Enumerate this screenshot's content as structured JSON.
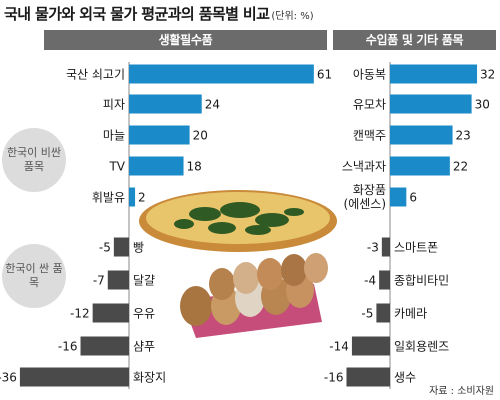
{
  "title": "국내 물가와 외국 물가 평균과의 품목별 비교",
  "unit_label": "(단위: %)",
  "group_high": "한국이 비싼 품목",
  "group_low": "한국이 싼 품목",
  "source": "자료 : 소비자원",
  "colors": {
    "positive": "#1a8ac8",
    "negative": "#4a4a4a",
    "header": "#6b6b6b",
    "group_circle": "#dcdcdc"
  },
  "chart_data": [
    {
      "type": "bar",
      "title": "생활필수품",
      "categories": [
        "국산 쇠고기",
        "피자",
        "마늘",
        "TV",
        "휘발유",
        "빵",
        "달걀",
        "우유",
        "샴푸",
        "화장지"
      ],
      "values": [
        61,
        24,
        20,
        18,
        2,
        -5,
        -7,
        -12,
        -16,
        -36
      ],
      "grid": false
    },
    {
      "type": "bar",
      "title": "수입품 및 기타 품목",
      "categories": [
        "아동복",
        "유모차",
        "캔맥주",
        "스낵과자",
        "화장품 (에센스)",
        "스마트폰",
        "종합비타민",
        "카메라",
        "일회용렌즈",
        "생수"
      ],
      "values": [
        32,
        30,
        23,
        22,
        6,
        -3,
        -4,
        -5,
        -14,
        -16
      ],
      "grid": false
    }
  ]
}
